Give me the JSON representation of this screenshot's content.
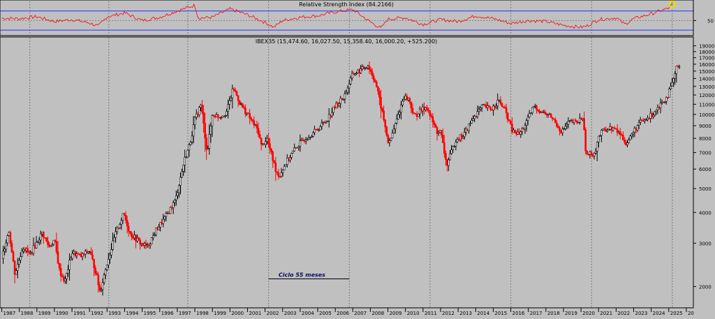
{
  "chart_data": [
    {
      "type": "line",
      "title": "Relative Strength Index (84.2166)",
      "series": [
        {
          "x": [
            1987.0,
            1988.0,
            1989.0,
            1990.0,
            1991.0,
            1992.0,
            1992.5,
            1993.0,
            1994.0,
            1995.0,
            1996.0,
            1997.0,
            1998.0,
            1998.2,
            1999.0,
            2000.0,
            2001.0,
            2002.0,
            2002.5,
            2003.0,
            2004.0,
            2005.0,
            2006.0,
            2007.0,
            2007.5,
            2008.0,
            2008.6,
            2009.0,
            2010.0,
            2011.0,
            2012.0,
            2013.0,
            2014.0,
            2015.0,
            2016.0,
            2017.0,
            2018.0,
            2019.0,
            2020.0,
            2020.3,
            2021.0,
            2022.0,
            2022.5,
            2023.0,
            2024.0,
            2025.0,
            2025.2
          ],
          "values": [
            55,
            54,
            58,
            48,
            52,
            45,
            38,
            58,
            66,
            50,
            57,
            70,
            82,
            55,
            57,
            74,
            62,
            46,
            36,
            50,
            57,
            60,
            68,
            73,
            60,
            47,
            34,
            53,
            56,
            42,
            52,
            48,
            60,
            54,
            44,
            50,
            48,
            40,
            36,
            38,
            52,
            56,
            42,
            54,
            64,
            76,
            84
          ]
        }
      ],
      "ylabel": "50",
      "yticks": [
        50
      ],
      "overbought": 70,
      "oversold": 30,
      "ylim": [
        20,
        90
      ],
      "marker": {
        "x": 2025.2,
        "y": 84,
        "color": "#e8e000"
      },
      "colors": {
        "line": "#ff0000",
        "bands": "#2030ff"
      }
    },
    {
      "type": "candlestick",
      "title": "IBEX35 (15,474.60, 16,027.50, 15,358.40, 16,000.20, +525.200)",
      "scale": "log",
      "yticks": [
        2000,
        3000,
        4000,
        5000,
        6000,
        7000,
        8000,
        9000,
        10000,
        11000,
        12000,
        13000,
        14000,
        15000,
        16000,
        17000,
        18000,
        19000
      ],
      "ylim": [
        1650,
        20500
      ],
      "xticks": [
        "1987",
        "1988",
        "1989",
        "1990",
        "1991",
        "1992",
        "1993",
        "1994",
        "1995",
        "1996",
        "1997",
        "1998",
        "1999",
        "2000",
        "2001",
        "2002",
        "2003",
        "2004",
        "2005",
        "2006",
        "2007",
        "2008",
        "2009",
        "2010",
        "2011",
        "2012",
        "2013",
        "2014",
        "2015",
        "2016",
        "2017",
        "2018",
        "2019",
        "2020",
        "2021",
        "2022",
        "2023",
        "2024",
        "2025",
        "20"
      ],
      "xlim": [
        1986.9,
        2026.4
      ],
      "cycle_lines": [
        1988.6,
        1993.1,
        1997.6,
        2002.2,
        2006.8,
        2011.4,
        2016.0,
        2020.6,
        2025.2
      ],
      "annotation": {
        "text": "Ciclo 55  meses",
        "x1": 2002.2,
        "x2": 2006.8,
        "y": 2150
      },
      "price_path": [
        [
          1987.0,
          2600
        ],
        [
          1987.4,
          3400
        ],
        [
          1987.75,
          2250
        ],
        [
          1988.2,
          2900
        ],
        [
          1988.6,
          2700
        ],
        [
          1989.3,
          3300
        ],
        [
          1989.7,
          2900
        ],
        [
          1990.0,
          3100
        ],
        [
          1990.3,
          2300
        ],
        [
          1990.6,
          2100
        ],
        [
          1991.0,
          2750
        ],
        [
          1991.5,
          2650
        ],
        [
          1992.0,
          2800
        ],
        [
          1992.35,
          2300
        ],
        [
          1992.6,
          1900
        ],
        [
          1993.0,
          2500
        ],
        [
          1993.5,
          3300
        ],
        [
          1993.95,
          3950
        ],
        [
          1994.3,
          3300
        ],
        [
          1994.9,
          3000
        ],
        [
          1995.3,
          2900
        ],
        [
          1995.8,
          3400
        ],
        [
          1996.3,
          3800
        ],
        [
          1996.9,
          4500
        ],
        [
          1997.4,
          6500
        ],
        [
          1997.7,
          7500
        ],
        [
          1998.0,
          9500
        ],
        [
          1998.35,
          11000
        ],
        [
          1998.7,
          7000
        ],
        [
          1999.0,
          10000
        ],
        [
          1999.4,
          9800
        ],
        [
          1999.8,
          10200
        ],
        [
          2000.2,
          12800
        ],
        [
          2000.6,
          11000
        ],
        [
          2001.0,
          10000
        ],
        [
          2001.6,
          8600
        ],
        [
          2001.8,
          7400
        ],
        [
          2002.1,
          8000
        ],
        [
          2002.6,
          6000
        ],
        [
          2002.8,
          5600
        ],
        [
          2003.2,
          6400
        ],
        [
          2003.8,
          7400
        ],
        [
          2004.3,
          8000
        ],
        [
          2004.9,
          8600
        ],
        [
          2005.5,
          9500
        ],
        [
          2006.0,
          10800
        ],
        [
          2006.5,
          11800
        ],
        [
          2007.0,
          14600
        ],
        [
          2007.5,
          15200
        ],
        [
          2007.85,
          15900
        ],
        [
          2008.3,
          13500
        ],
        [
          2008.7,
          10000
        ],
        [
          2009.05,
          7500
        ],
        [
          2009.4,
          9000
        ],
        [
          2009.9,
          11800
        ],
        [
          2010.2,
          11500
        ],
        [
          2010.5,
          9800
        ],
        [
          2010.9,
          10400
        ],
        [
          2011.2,
          10800
        ],
        [
          2011.5,
          9500
        ],
        [
          2011.8,
          8500
        ],
        [
          2012.0,
          8500
        ],
        [
          2012.35,
          6200
        ],
        [
          2012.9,
          8000
        ],
        [
          2013.3,
          8200
        ],
        [
          2013.9,
          9800
        ],
        [
          2014.4,
          10800
        ],
        [
          2014.9,
          10500
        ],
        [
          2015.3,
          11400
        ],
        [
          2015.7,
          10300
        ],
        [
          2016.1,
          8500
        ],
        [
          2016.5,
          8300
        ],
        [
          2016.9,
          9300
        ],
        [
          2017.3,
          10800
        ],
        [
          2017.8,
          10200
        ],
        [
          2018.3,
          9800
        ],
        [
          2018.9,
          8500
        ],
        [
          2019.3,
          9300
        ],
        [
          2019.8,
          9300
        ],
        [
          2020.1,
          9800
        ],
        [
          2020.3,
          6800
        ],
        [
          2020.8,
          7000
        ],
        [
          2020.95,
          8000
        ],
        [
          2021.3,
          8700
        ],
        [
          2021.8,
          8800
        ],
        [
          2022.2,
          8400
        ],
        [
          2022.6,
          7600
        ],
        [
          2022.9,
          8300
        ],
        [
          2023.3,
          9200
        ],
        [
          2023.7,
          9500
        ],
        [
          2024.1,
          10100
        ],
        [
          2024.5,
          11000
        ],
        [
          2024.9,
          11800
        ],
        [
          2025.2,
          13300
        ],
        [
          2025.45,
          15500
        ],
        [
          2025.6,
          16000
        ]
      ],
      "colors": {
        "up": "#000000",
        "down": "#ff0000"
      }
    }
  ],
  "colors": {
    "background": "#c0c0c0",
    "panel_border": "#000000",
    "grid": "#808080",
    "annotation_text": "#0a0a60"
  }
}
